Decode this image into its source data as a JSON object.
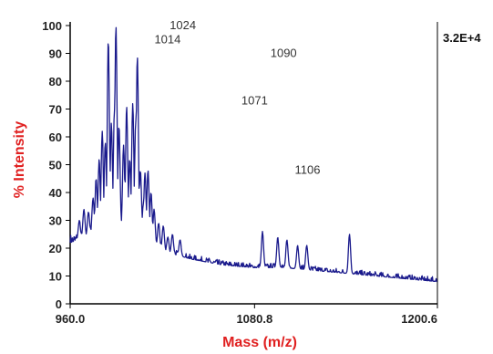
{
  "chart_data": {
    "type": "line",
    "title": "",
    "xlabel": "Mass (m/z)",
    "ylabel": "% Intensity",
    "xlim": [
      960.0,
      1200.6
    ],
    "ylim": [
      0,
      100
    ],
    "x_tick_labels": [
      "960.0",
      "1080.8",
      "1200.6"
    ],
    "x_tick_values": [
      960.0,
      1080.8,
      1200.6
    ],
    "y_tick_values": [
      0,
      10,
      20,
      30,
      40,
      50,
      60,
      70,
      80,
      90,
      100
    ],
    "y_tick_labels": [
      "0",
      "10",
      "20",
      "30",
      "40",
      "50",
      "60",
      "70",
      "80",
      "90",
      "100"
    ],
    "max_intensity_label": "3.2E+4",
    "peak_labels": [
      {
        "text": "1014",
        "x": 1014,
        "y": 95
      },
      {
        "text": "1024",
        "x": 1024,
        "y": 100
      },
      {
        "text": "1090",
        "x": 1090,
        "y": 90
      },
      {
        "text": "1071",
        "x": 1071,
        "y": 73
      },
      {
        "text": "1106",
        "x": 1106,
        "y": 48
      }
    ],
    "series": [
      {
        "color": "#1a1a8c",
        "peaks": [
          [
            966,
            30
          ],
          [
            969,
            34
          ],
          [
            972,
            33
          ],
          [
            975,
            38
          ],
          [
            977,
            45
          ],
          [
            979,
            52
          ],
          [
            981,
            62
          ],
          [
            983,
            58
          ],
          [
            985,
            95
          ],
          [
            987,
            65
          ],
          [
            989,
            70
          ],
          [
            990,
            100
          ],
          [
            992,
            64
          ],
          [
            995,
            57
          ],
          [
            997,
            71
          ],
          [
            999,
            52
          ],
          [
            1001,
            72
          ],
          [
            1003,
            66
          ],
          [
            1004,
            89
          ],
          [
            1006,
            48
          ],
          [
            1008,
            36
          ],
          [
            1009,
            47
          ],
          [
            1011,
            48
          ],
          [
            1013,
            40
          ],
          [
            1015,
            34
          ],
          [
            1018,
            29
          ],
          [
            1021,
            28
          ],
          [
            1024,
            24
          ],
          [
            1027,
            25
          ],
          [
            1032,
            23
          ],
          [
            1086,
            26
          ],
          [
            1096,
            24
          ],
          [
            1102,
            23
          ],
          [
            1109,
            21
          ],
          [
            1115,
            21
          ],
          [
            1143,
            25
          ]
        ],
        "baseline": [
          [
            960,
            22
          ],
          [
            975,
            25
          ],
          [
            1000,
            26
          ],
          [
            1010,
            24
          ],
          [
            1020,
            19
          ],
          [
            1040,
            16
          ],
          [
            1060,
            14
          ],
          [
            1080,
            13
          ],
          [
            1100,
            13
          ],
          [
            1120,
            12
          ],
          [
            1140,
            11
          ],
          [
            1160,
            10
          ],
          [
            1180,
            9
          ],
          [
            1200.6,
            8
          ]
        ]
      }
    ],
    "colors": {
      "line": "#1a1a8c",
      "axis_title": "#e02020",
      "axis": "#000000"
    }
  }
}
